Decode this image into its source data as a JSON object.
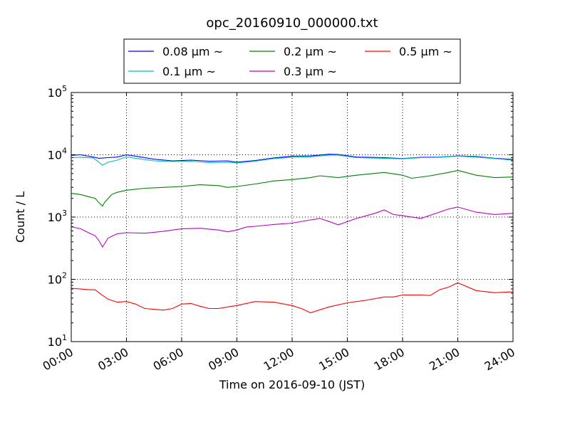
{
  "chart_data": {
    "type": "line",
    "title": "opc_20160910_000000.txt",
    "xlabel": "Time on 2016-09-10 (JST)",
    "ylabel": "Count / L",
    "x_unit": "hours",
    "xlim": [
      0,
      24
    ],
    "ylim": [
      10,
      100000
    ],
    "yscale": "log",
    "grid": true,
    "legend_position": "top-center",
    "x_ticks": [
      {
        "value": 0,
        "label": "00:00"
      },
      {
        "value": 3,
        "label": "03:00"
      },
      {
        "value": 6,
        "label": "06:00"
      },
      {
        "value": 9,
        "label": "09:00"
      },
      {
        "value": 12,
        "label": "12:00"
      },
      {
        "value": 15,
        "label": "15:00"
      },
      {
        "value": 18,
        "label": "18:00"
      },
      {
        "value": 21,
        "label": "21:00"
      },
      {
        "value": 24,
        "label": "24:00"
      }
    ],
    "y_ticks": [
      {
        "value": 10,
        "base": "10",
        "exp": "1"
      },
      {
        "value": 100,
        "base": "10",
        "exp": "2"
      },
      {
        "value": 1000,
        "base": "10",
        "exp": "3"
      },
      {
        "value": 10000,
        "base": "10",
        "exp": "4"
      },
      {
        "value": 100000,
        "base": "10",
        "exp": "5"
      }
    ],
    "series": [
      {
        "name": "0.08 μm ~",
        "color": "#0000ff",
        "x": [
          0,
          0.5,
          1.2,
          1.5,
          2.0,
          2.5,
          3.0,
          3.5,
          4.5,
          5.5,
          6.5,
          7.5,
          8.5,
          9.0,
          10.0,
          11.0,
          12.0,
          13.0,
          14.0,
          14.5,
          15.5,
          17.0,
          18.0,
          19.0,
          20.0,
          21.0,
          22.0,
          23.0,
          24.0
        ],
        "y": [
          9800,
          10000,
          9200,
          8800,
          9000,
          9200,
          10000,
          9500,
          8500,
          8000,
          8200,
          7900,
          8000,
          7600,
          8100,
          8900,
          9500,
          9600,
          10200,
          10100,
          9200,
          9000,
          8700,
          9100,
          9200,
          9600,
          9400,
          8800,
          8400
        ]
      },
      {
        "name": "0.1 μm ~",
        "color": "#00bfbf",
        "x": [
          0,
          0.5,
          1.2,
          1.5,
          1.7,
          2.0,
          2.5,
          3.0,
          3.5,
          4.5,
          5.5,
          6.5,
          7.5,
          8.5,
          9.0,
          10.0,
          11.0,
          12.0,
          13.0,
          14.0,
          14.5,
          15.5,
          17.0,
          18.0,
          19.0,
          20.0,
          21.0,
          22.0,
          23.0,
          24.0
        ],
        "y": [
          9000,
          9100,
          8900,
          7600,
          6800,
          7600,
          8200,
          9300,
          8800,
          8000,
          7800,
          7900,
          7500,
          7600,
          7400,
          7900,
          8700,
          9100,
          9300,
          9900,
          9900,
          9000,
          8800,
          8600,
          9000,
          9100,
          9500,
          9200,
          8700,
          8200
        ]
      },
      {
        "name": "0.2 μm ~",
        "color": "#008000",
        "x": [
          0,
          0.5,
          1.0,
          1.3,
          1.5,
          1.7,
          1.8,
          2.2,
          2.5,
          3.0,
          4.0,
          5.0,
          6.0,
          7.0,
          8.0,
          8.5,
          9.0,
          10.0,
          11.0,
          12.0,
          13.0,
          13.5,
          14.5,
          15.5,
          17.0,
          18.0,
          18.5,
          19.5,
          20.5,
          21.0,
          22.0,
          23.0,
          24.0
        ],
        "y": [
          2400,
          2300,
          2100,
          2000,
          1700,
          1500,
          1700,
          2300,
          2500,
          2700,
          2900,
          3000,
          3100,
          3300,
          3200,
          3000,
          3100,
          3400,
          3800,
          4000,
          4300,
          4600,
          4300,
          4700,
          5200,
          4700,
          4200,
          4600,
          5200,
          5600,
          4700,
          4300,
          4400
        ]
      },
      {
        "name": "0.3 μm ~",
        "color": "#bf00bf",
        "x": [
          0,
          0.5,
          1.0,
          1.3,
          1.5,
          1.7,
          2.0,
          2.5,
          3.0,
          4.0,
          5.0,
          6.0,
          7.0,
          8.0,
          8.5,
          9.0,
          9.5,
          10.0,
          11.0,
          12.0,
          13.0,
          13.5,
          14.0,
          14.5,
          15.5,
          16.5,
          17.0,
          17.5,
          18.0,
          19.0,
          20.0,
          20.5,
          21.0,
          22.0,
          23.0,
          24.0
        ],
        "y": [
          700,
          650,
          550,
          500,
          420,
          330,
          460,
          540,
          560,
          550,
          590,
          650,
          660,
          620,
          580,
          620,
          690,
          710,
          760,
          800,
          900,
          950,
          850,
          750,
          950,
          1150,
          1300,
          1100,
          1050,
          950,
          1200,
          1350,
          1450,
          1200,
          1100,
          1150
        ]
      },
      {
        "name": "0.5 μm ~",
        "color": "#ff0000",
        "x": [
          0,
          0.5,
          1.0,
          1.3,
          1.6,
          2.0,
          2.5,
          3.0,
          3.5,
          4.0,
          4.5,
          5.0,
          5.5,
          6.0,
          6.5,
          7.0,
          7.5,
          8.0,
          8.5,
          9.0,
          10.0,
          11.0,
          12.0,
          12.5,
          13.0,
          14.0,
          15.0,
          16.0,
          17.0,
          17.5,
          18.0,
          19.0,
          19.5,
          20.0,
          20.5,
          21.0,
          22.0,
          23.0,
          24.0
        ],
        "y": [
          72,
          70,
          68,
          68,
          58,
          48,
          43,
          44,
          40,
          34,
          33,
          32,
          34,
          40,
          41,
          37,
          34,
          34,
          36,
          38,
          44,
          43,
          38,
          34,
          29,
          36,
          42,
          46,
          52,
          52,
          56,
          56,
          55,
          68,
          75,
          88,
          66,
          61,
          63
        ]
      }
    ]
  }
}
